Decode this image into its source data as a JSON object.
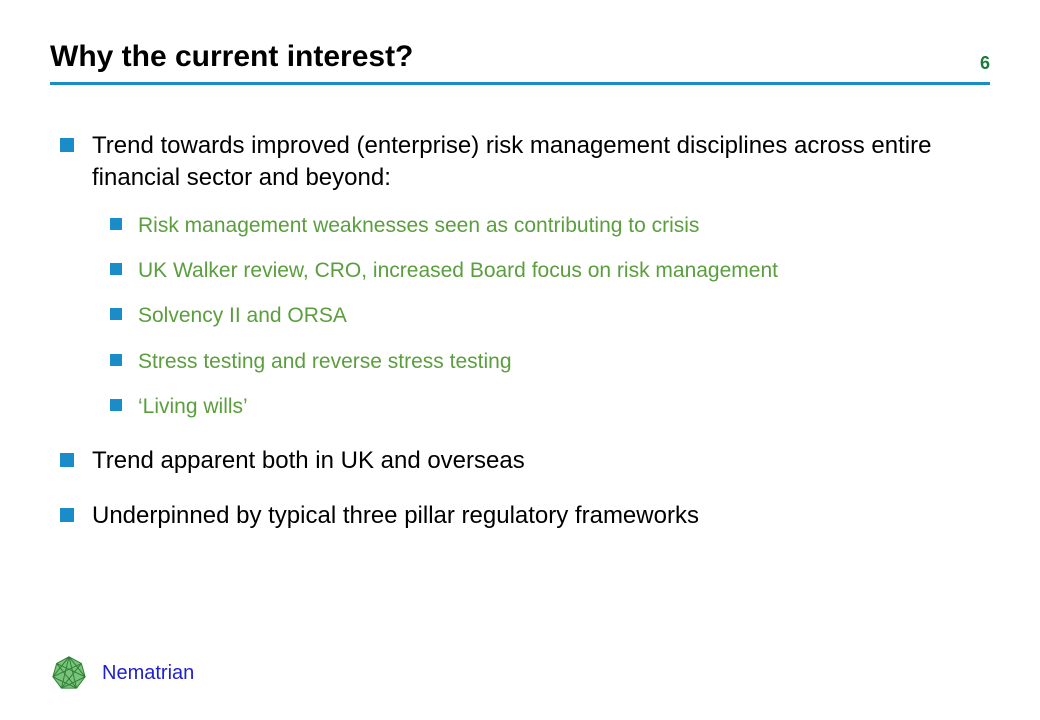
{
  "slide": {
    "title": "Why the current interest?",
    "page_number": "6",
    "colors": {
      "title_text": "#000000",
      "page_number": "#1a7a3a",
      "divider": "#1a8cc8",
      "bullet_marker": "#1a8cc8",
      "body_text": "#000000",
      "sub_text": "#5a9e3d",
      "brand_text": "#2020d0",
      "logo_fill": "#4caf50",
      "logo_stroke": "#2e7d32",
      "background": "#ffffff"
    },
    "bullets": [
      {
        "text": "Trend towards improved (enterprise) risk management disciplines across entire financial sector and beyond:",
        "sub": [
          "Risk management weaknesses seen as contributing to crisis",
          "UK Walker review, CRO, increased Board focus on risk management",
          "Solvency II and ORSA",
          "Stress testing and reverse stress testing",
          "‘Living wills’"
        ]
      },
      {
        "text": "Trend apparent both in UK and overseas",
        "sub": []
      },
      {
        "text": "Underpinned by typical three pillar regulatory frameworks",
        "sub": []
      }
    ],
    "brand": "Nematrian"
  }
}
